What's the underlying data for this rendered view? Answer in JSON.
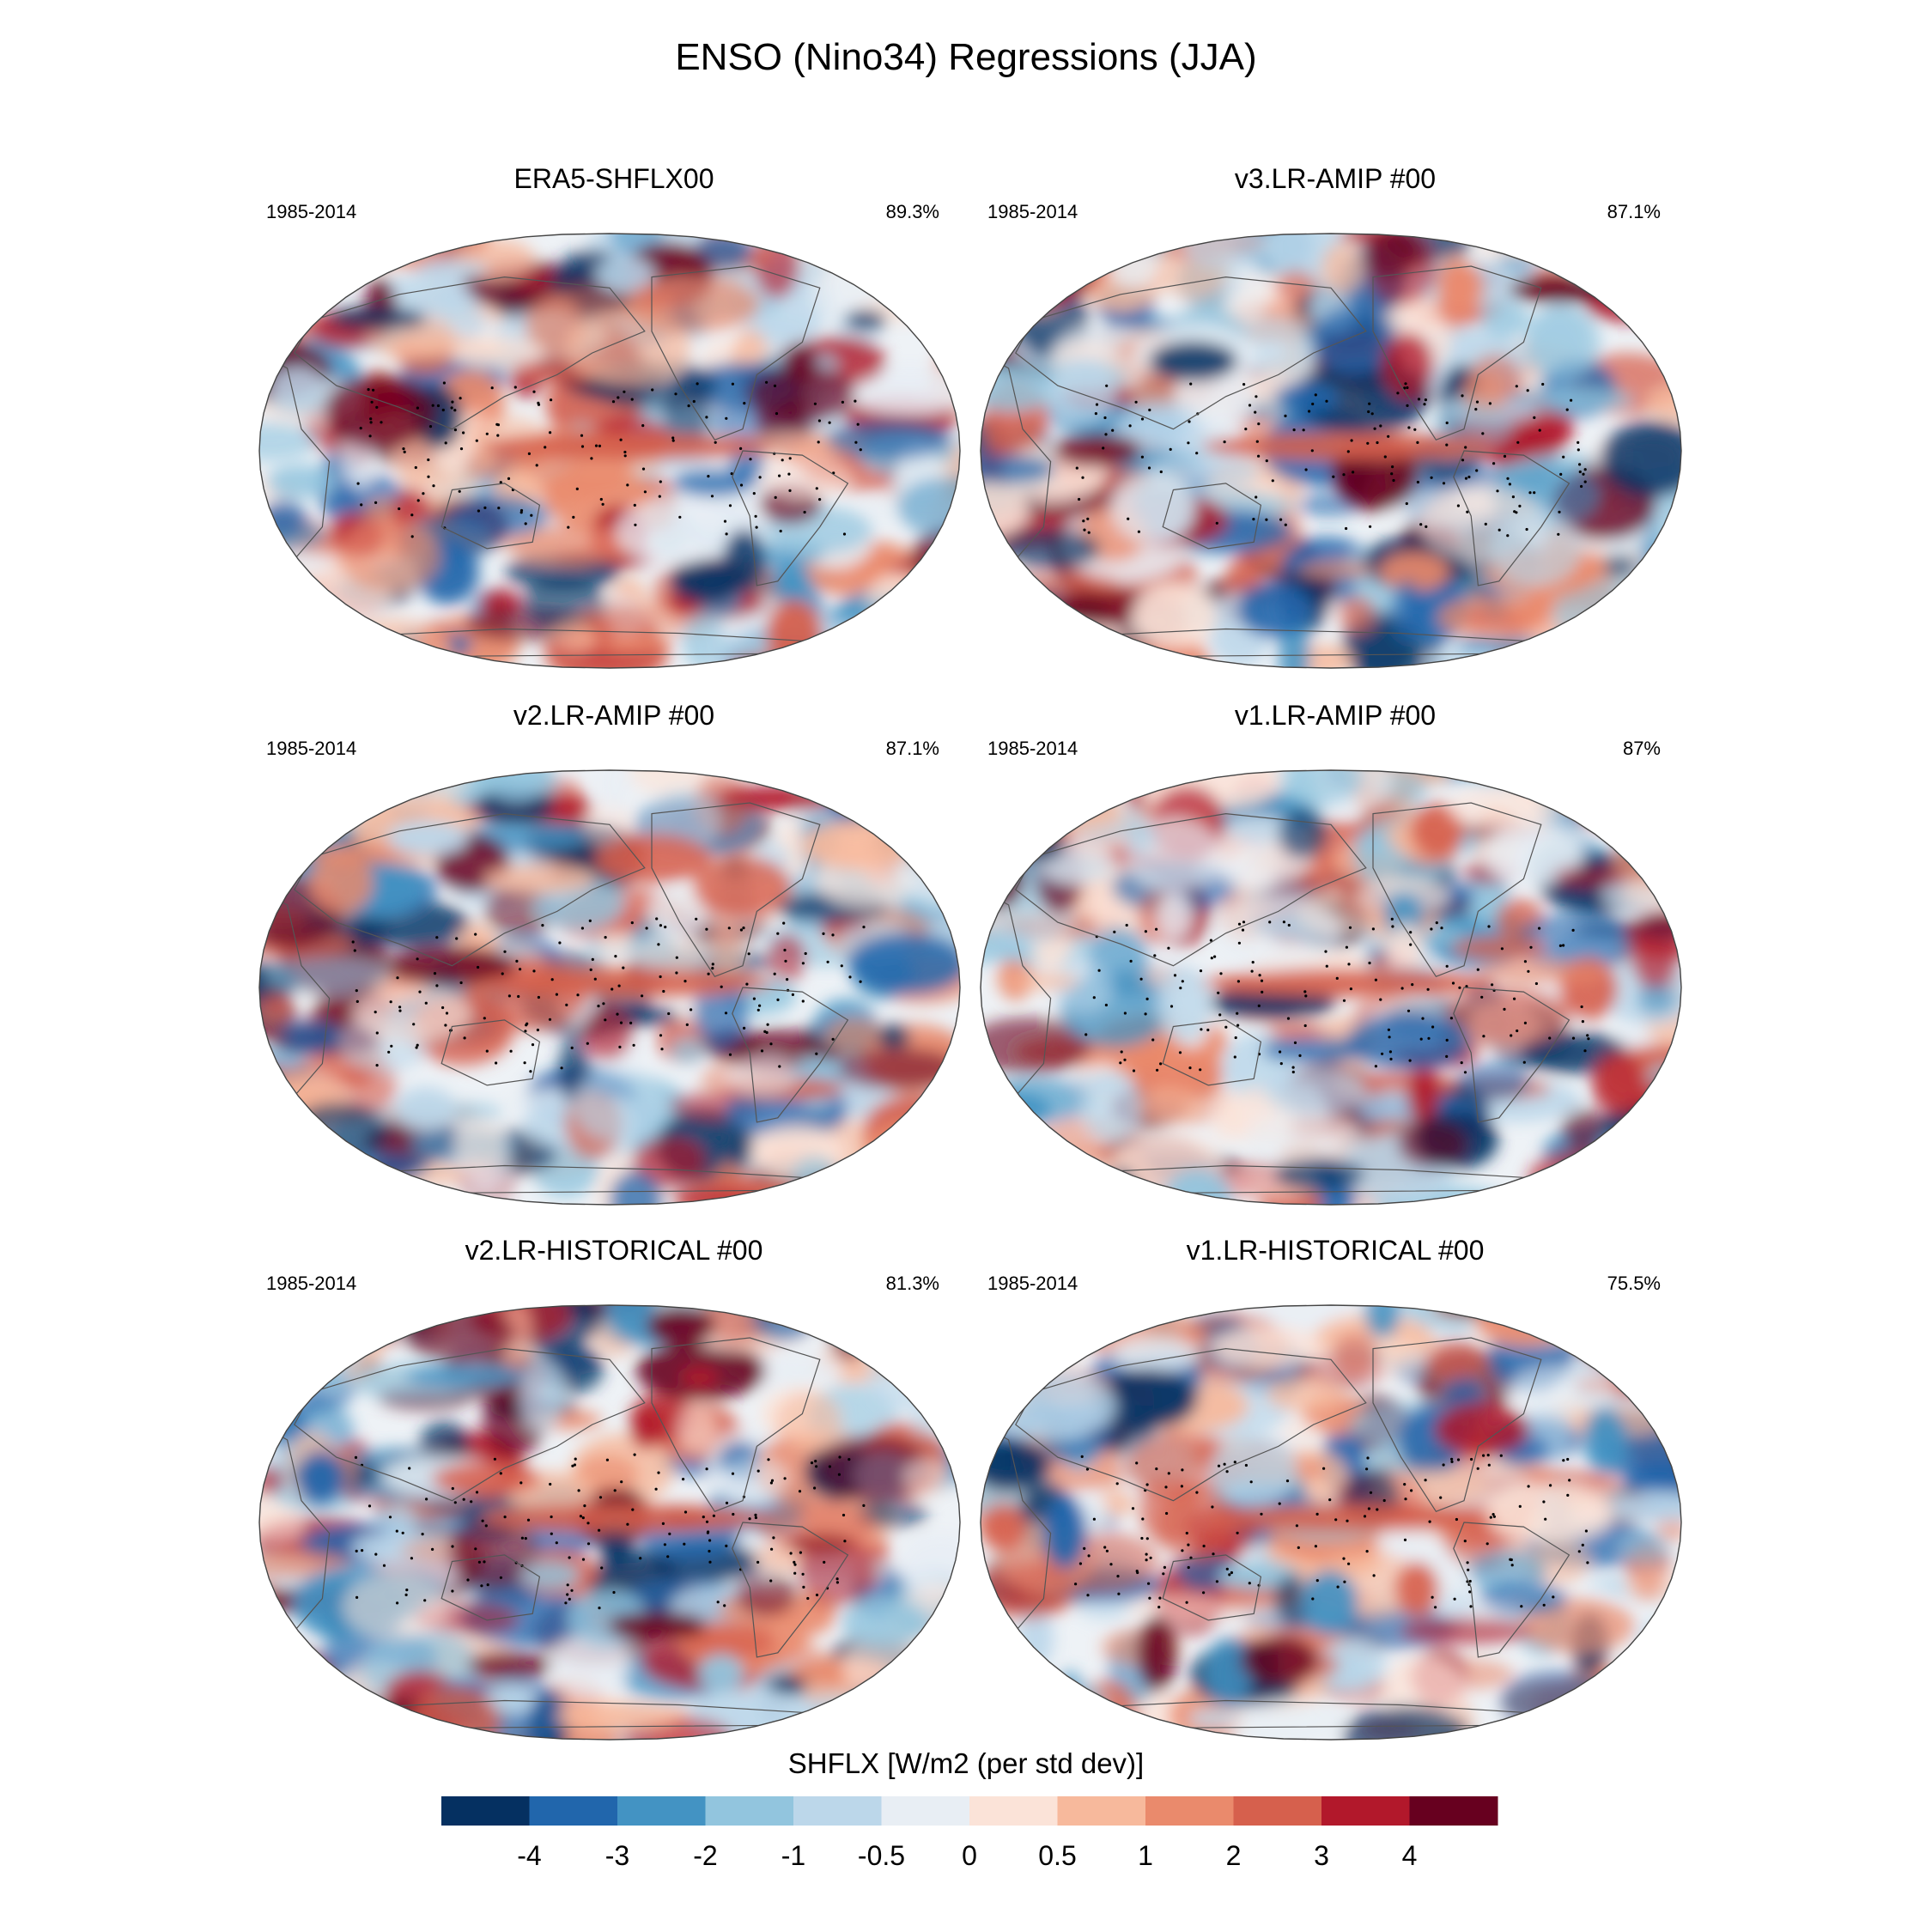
{
  "title": "ENSO (Nino34) Regressions (JJA)",
  "chart_data": {
    "type": "heatmap",
    "title": "ENSO (Nino34) Regressions (JJA)",
    "projection": "Robinson global map",
    "panels": [
      {
        "name": "ERA5-SHFLX00",
        "period": "1985-2014",
        "pattern_correlation": "89.3%"
      },
      {
        "name": "v3.LR-AMIP  #00",
        "period": "1985-2014",
        "pattern_correlation": "87.1%"
      },
      {
        "name": "v2.LR-AMIP  #00",
        "period": "1985-2014",
        "pattern_correlation": "87.1%"
      },
      {
        "name": "v1.LR-AMIP  #00",
        "period": "1985-2014",
        "pattern_correlation": "87%"
      },
      {
        "name": "v2.LR-HISTORICAL  #00",
        "period": "1985-2014",
        "pattern_correlation": "81.3%"
      },
      {
        "name": "v1.LR-HISTORICAL  #00",
        "period": "1985-2014",
        "pattern_correlation": "75.5%"
      }
    ],
    "colorbar": {
      "label": "SHFLX [W/m2 (per std dev)]",
      "ticks": [
        "-4",
        "-3",
        "-2",
        "-1",
        "-0.5",
        "0",
        "0.5",
        "1",
        "2",
        "3",
        "4"
      ],
      "colors": [
        "#053061",
        "#2166ac",
        "#4393c3",
        "#92c5de",
        "#bcd7ea",
        "#e8eef4",
        "#fbe3d8",
        "#f7b99c",
        "#ea8a6c",
        "#d6604d",
        "#b2182b",
        "#67001f"
      ]
    }
  }
}
